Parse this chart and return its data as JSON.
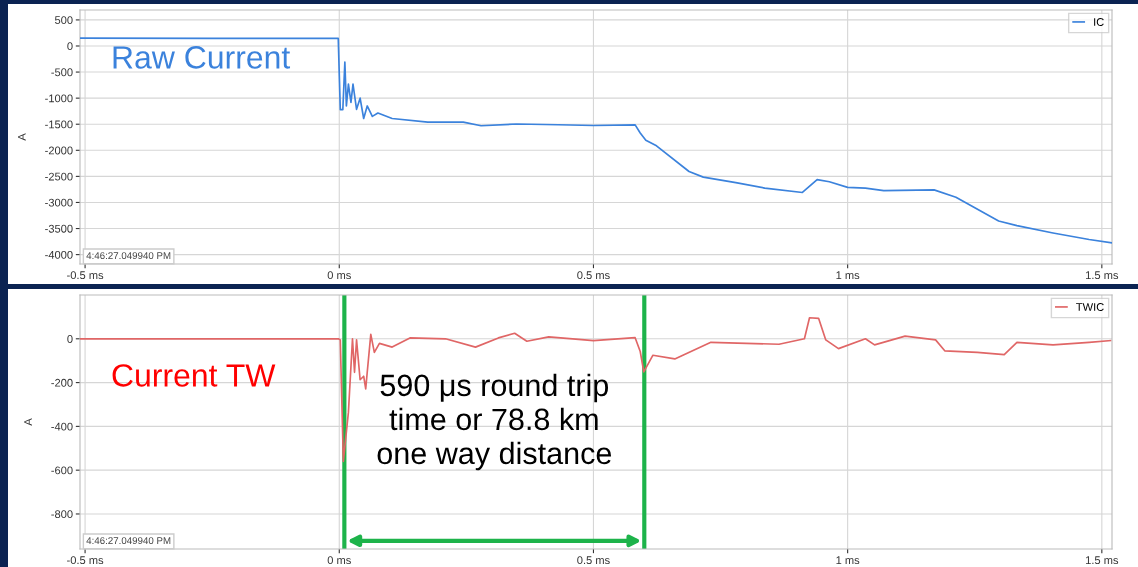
{
  "chart_data": [
    {
      "type": "line",
      "ylabel": "A",
      "legend": "top right",
      "grid": true,
      "line_style": "solid",
      "marker": "none",
      "xlim": [
        -0.51,
        1.52
      ],
      "xticks": [
        {
          "value": -0.5,
          "label": "-0.5 ms"
        },
        {
          "value": 0,
          "label": "0 ms"
        },
        {
          "value": 0.5,
          "label": "0.5 ms"
        },
        {
          "value": 1,
          "label": "1 ms"
        },
        {
          "value": 1.5,
          "label": "1.5 ms"
        }
      ],
      "ylim": [
        -4180,
        690
      ],
      "yticks": [
        500,
        0,
        -500,
        -1000,
        -1500,
        -2000,
        -2500,
        -3000,
        -3500,
        -4000
      ],
      "annotations": [
        "Raw Current",
        "4:46:27.049940 PM"
      ],
      "series": [
        {
          "name": "IC",
          "color": "#3b82dc",
          "x": [
            -0.51,
            -0.25,
            -0.1,
            -0.002,
            0.002,
            0.007,
            0.011,
            0.014,
            0.018,
            0.023,
            0.027,
            0.034,
            0.041,
            0.048,
            0.055,
            0.065,
            0.076,
            0.104,
            0.174,
            0.244,
            0.279,
            0.349,
            0.431,
            0.5,
            0.582,
            0.592,
            0.603,
            0.624,
            0.688,
            0.716,
            0.78,
            0.837,
            0.911,
            0.94,
            0.964,
            1.0,
            1.035,
            1.071,
            1.17,
            1.213,
            1.297,
            1.333,
            1.404,
            1.475,
            1.52
          ],
          "values": [
            150,
            145,
            145,
            145,
            -1220,
            -1220,
            -310,
            -1150,
            -730,
            -1080,
            -730,
            -1215,
            -1000,
            -1390,
            -1150,
            -1350,
            -1285,
            -1390,
            -1460,
            -1460,
            -1530,
            -1495,
            -1510,
            -1525,
            -1512,
            -1667,
            -1807,
            -1914,
            -2407,
            -2514,
            -2619,
            -2725,
            -2809,
            -2562,
            -2604,
            -2710,
            -2725,
            -2774,
            -2759,
            -2900,
            -3356,
            -3444,
            -3585,
            -3711,
            -3776
          ]
        }
      ]
    },
    {
      "type": "line",
      "ylabel": "A",
      "legend": "top right",
      "grid": true,
      "line_style": "solid",
      "marker": "none",
      "xlim": [
        -0.51,
        1.52
      ],
      "xticks": [
        {
          "value": -0.5,
          "label": "-0.5 ms"
        },
        {
          "value": 0,
          "label": "0 ms"
        },
        {
          "value": 0.5,
          "label": "0.5 ms"
        },
        {
          "value": 1,
          "label": "1 ms"
        },
        {
          "value": 1.5,
          "label": "1.5 ms"
        }
      ],
      "ylim": [
        -960,
        200
      ],
      "yticks": [
        0,
        -200,
        -400,
        -600,
        -800
      ],
      "annotations": [
        "Current TW",
        "590 μs round trip\ntime or 78.8 km\none way distance",
        "4:46:27.049940 PM"
      ],
      "ref_lines": [
        {
          "axis": "x",
          "value": 0.01,
          "color": "#1db34a",
          "line_style": "solid"
        },
        {
          "axis": "x",
          "value": 0.6,
          "color": "#1db34a",
          "line_style": "solid"
        }
      ],
      "series": [
        {
          "name": "TWIC",
          "color": "#e06666",
          "x": [
            -0.51,
            -0.25,
            -0.1,
            -0.002,
            0.002,
            0.008,
            0.018,
            0.026,
            0.03,
            0.034,
            0.041,
            0.048,
            0.052,
            0.055,
            0.062,
            0.069,
            0.079,
            0.104,
            0.139,
            0.209,
            0.268,
            0.313,
            0.345,
            0.369,
            0.412,
            0.5,
            0.582,
            0.592,
            0.599,
            0.617,
            0.66,
            0.731,
            0.865,
            0.915,
            0.925,
            0.943,
            0.957,
            0.982,
            1.035,
            1.053,
            1.113,
            1.173,
            1.191,
            1.255,
            1.308,
            1.333,
            1.404,
            1.475,
            1.517
          ],
          "values": [
            0,
            0,
            0,
            0,
            -5,
            -560,
            -335,
            0,
            -153,
            -5,
            -187,
            -171,
            -229,
            -153,
            20,
            -62,
            -21,
            -38,
            4,
            0,
            -38,
            4,
            25,
            -11,
            9,
            -8,
            5,
            -58,
            -151,
            -75,
            -92,
            -16,
            -25,
            0,
            96,
            93,
            -5,
            -45,
            0,
            -28,
            12,
            -5,
            -55,
            -62,
            -72,
            -16,
            -28,
            -16,
            -8
          ]
        }
      ]
    }
  ]
}
